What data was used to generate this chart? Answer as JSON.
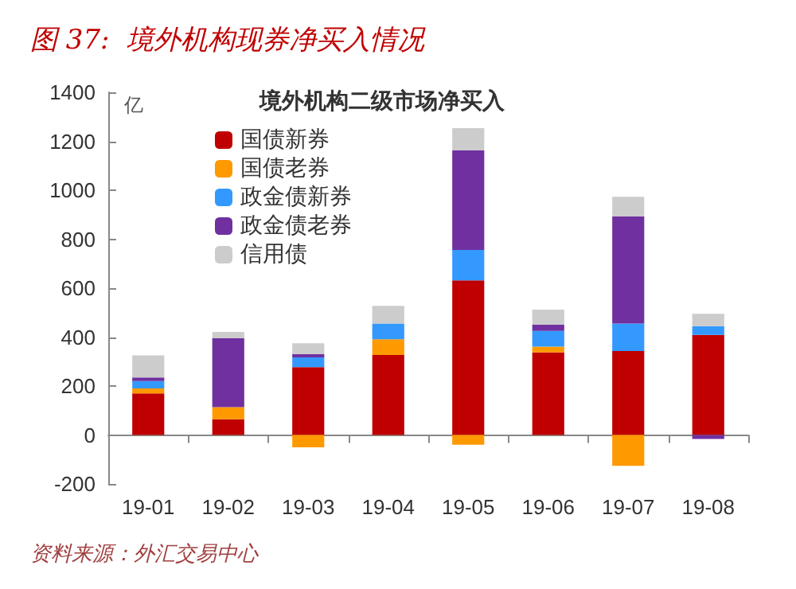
{
  "chart_data": {
    "type": "bar",
    "title": "图 37:  境外机构现券净买入情况",
    "legend_title": "境外机构二级市场净买入",
    "ylabel": "亿",
    "annotations": [
      "资料来源：外汇交易中心"
    ],
    "categories": [
      "19-01",
      "19-02",
      "19-03",
      "19-04",
      "19-05",
      "19-06",
      "19-07",
      "19-08"
    ],
    "stacked": true,
    "ylim": [
      -200,
      1400
    ],
    "yticks": [
      -200,
      0,
      200,
      400,
      600,
      800,
      1000,
      1200,
      1400
    ],
    "legend": "top left",
    "series": [
      {
        "name": "国债新券",
        "color": "#c00000",
        "values": [
          170,
          64,
          277,
          327,
          632,
          337,
          343,
          409
        ]
      },
      {
        "name": "国债老券",
        "color": "#ff9900",
        "values": [
          20,
          50,
          -50,
          64,
          -40,
          24,
          -126,
          0
        ]
      },
      {
        "name": "政金债新券",
        "color": "#3399ff",
        "values": [
          30,
          0,
          40,
          64,
          124,
          64,
          112,
          36
        ]
      },
      {
        "name": "政金债老券",
        "color": "#7030a0",
        "values": [
          15,
          281,
          14,
          0,
          407,
          26,
          438,
          -16
        ]
      },
      {
        "name": "信用债",
        "color": "#cccccc",
        "values": [
          90,
          26,
          44,
          73,
          91,
          61,
          80,
          50
        ]
      }
    ]
  }
}
